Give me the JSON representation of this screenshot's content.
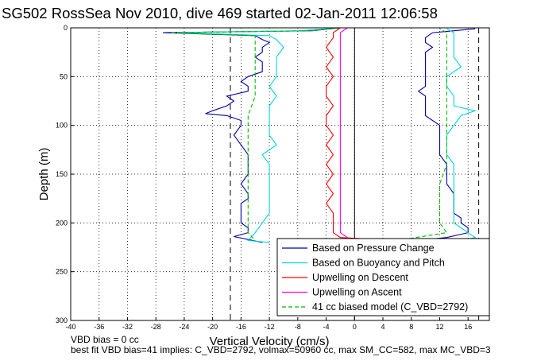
{
  "chart_data": {
    "type": "line",
    "title": "SG502 RossSea Nov 2010, dive 469 started 02-Jan-2011 12:06:58",
    "xlabel": "Vertical Velocity (cm/s)",
    "ylabel": "Depth (m)",
    "xlim": [
      -40,
      19
    ],
    "ylim": [
      300,
      0
    ],
    "y_reversed": true,
    "grid": true,
    "grid_style": "dotted",
    "x_ticks": [
      -40,
      -36,
      -32,
      -28,
      -24,
      -20,
      -16,
      -12,
      -8,
      -4,
      0,
      4,
      8,
      12,
      16
    ],
    "y_ticks": [
      0,
      50,
      100,
      150,
      200,
      250,
      300
    ],
    "legend_position": "bottom-right",
    "reference_lines_x": [
      -17.5,
      17.5
    ],
    "zero_line_x": 0,
    "footer_lines": [
      "VBD bias = 0 cc",
      "best fit VBD bias=41 implies: C_VBD=2792, volmax=50960 cc, max SM_CC=582, max MC_VBD=3"
    ],
    "series": [
      {
        "name": "Based on Pressure Change",
        "color": "#0000aa",
        "style": "solid",
        "descent": {
          "depth": [
            0,
            3,
            5,
            8,
            12,
            15,
            20,
            25,
            30,
            35,
            40,
            45,
            50,
            55,
            60,
            65,
            70,
            75,
            80,
            85,
            88,
            90,
            95,
            100,
            110,
            120,
            130,
            140,
            150,
            160,
            170,
            175,
            180,
            190,
            200,
            205,
            210,
            214,
            217,
            220
          ],
          "value": [
            -2,
            -6,
            -27,
            -14,
            -13,
            -12,
            -13,
            -13,
            -14,
            -13,
            -13,
            -13,
            -15,
            -16,
            -15,
            -15,
            -18,
            -17,
            -18,
            -20,
            -21,
            -18,
            -16,
            -16,
            -17,
            -16,
            -15,
            -15,
            -15,
            -16,
            -15,
            -15,
            -16,
            -16,
            -16,
            -15,
            -15,
            -17,
            -15,
            -13
          ]
        },
        "ascent": {
          "depth": [
            220,
            215,
            210,
            205,
            200,
            195,
            190,
            180,
            170,
            160,
            150,
            140,
            130,
            120,
            110,
            100,
            90,
            80,
            70,
            65,
            60,
            55,
            50,
            45,
            40,
            35,
            30,
            25,
            20,
            15,
            10,
            5,
            3,
            1
          ],
          "value": [
            6,
            13,
            16,
            16,
            15,
            15,
            14,
            14,
            14,
            13,
            13,
            13,
            12,
            12,
            12,
            12,
            10,
            10,
            10,
            9,
            10,
            10,
            10,
            10,
            10,
            10,
            10,
            10,
            11,
            10,
            10,
            11,
            14,
            17
          ]
        }
      },
      {
        "name": "Based on Buoyancy and Pitch",
        "color": "#00d8d8",
        "style": "solid",
        "descent": {
          "depth": [
            0,
            3,
            5,
            8,
            12,
            20,
            30,
            40,
            50,
            60,
            70,
            80,
            90,
            100,
            110,
            120,
            130,
            140,
            150,
            160,
            170,
            180,
            190,
            200,
            210,
            218,
            220
          ],
          "value": [
            -2,
            -8,
            -25,
            -12,
            -11,
            -10,
            -11,
            -11,
            -11,
            -12,
            -11,
            -12,
            -12,
            -12,
            -12,
            -11,
            -13,
            -12,
            -12,
            -12,
            -12,
            -12,
            -12,
            -13,
            -14,
            -15,
            -12
          ]
        },
        "ascent": {
          "depth": [
            220,
            215,
            210,
            205,
            200,
            190,
            180,
            170,
            160,
            150,
            140,
            130,
            120,
            110,
            100,
            90,
            85,
            80,
            70,
            60,
            50,
            45,
            40,
            30,
            20,
            15,
            10,
            5,
            1
          ],
          "value": [
            14,
            17,
            16,
            15,
            14,
            14,
            14,
            14,
            14,
            14,
            14,
            13,
            13,
            13,
            14,
            15,
            17,
            14,
            14,
            13,
            13,
            14,
            15,
            14,
            14,
            14,
            14,
            14,
            13
          ]
        }
      },
      {
        "name": "Upwelling on Descent",
        "color": "#ff0000",
        "style": "solid",
        "descent": {
          "depth": [
            0,
            5,
            10,
            20,
            30,
            40,
            50,
            60,
            70,
            80,
            90,
            100,
            110,
            120,
            130,
            140,
            150,
            160,
            170,
            180,
            190,
            200,
            210,
            215,
            218
          ],
          "value": [
            -2,
            -3,
            -3,
            -4,
            -3,
            -4,
            -3,
            -4,
            -4,
            -3,
            -4,
            -4,
            -3,
            -4,
            -3,
            -4,
            -3,
            -4,
            -3,
            -4,
            -3,
            -3,
            -3,
            -2,
            6
          ]
        },
        "ascent": {
          "depth": [],
          "value": []
        }
      },
      {
        "name": "Upwelling on Ascent",
        "color": "#ff00ff",
        "style": "solid",
        "descent": {
          "depth": [
            0,
            5,
            10,
            20,
            30,
            40,
            50,
            60,
            70,
            80,
            90,
            100,
            110,
            120,
            130,
            140,
            150,
            160,
            170,
            180,
            190,
            200,
            210,
            215
          ],
          "value": [
            -1,
            -2,
            -2,
            -2,
            -2,
            -2,
            -2,
            -2,
            -2,
            -2,
            -2,
            -2,
            -2,
            -2,
            -2,
            -2,
            -2,
            -2,
            -2,
            -2,
            -2,
            -2,
            -2,
            -1
          ]
        },
        "ascent": {
          "depth": [],
          "value": []
        }
      },
      {
        "name": "41 cc biased model (C_VBD=2792)",
        "color": "#00bb00",
        "style": "dashed",
        "descent": {
          "depth": [
            0,
            3,
            5,
            8,
            15,
            30,
            50,
            70,
            90,
            100,
            120,
            140,
            160,
            180,
            200,
            210,
            218
          ],
          "value": [
            -2,
            -6,
            -26,
            -14,
            -14,
            -14,
            -14,
            -14,
            -15,
            -15,
            -15,
            -15,
            -15,
            -15,
            -15,
            -15,
            -14
          ]
        },
        "ascent": {
          "depth": [
            218,
            210,
            200,
            190,
            180,
            160,
            140,
            120,
            100,
            80,
            60,
            40,
            20,
            10,
            5,
            1
          ],
          "value": [
            6,
            13,
            12,
            12,
            12,
            12,
            13,
            13,
            13,
            13,
            13,
            13,
            13,
            13,
            13,
            12
          ]
        }
      }
    ]
  }
}
